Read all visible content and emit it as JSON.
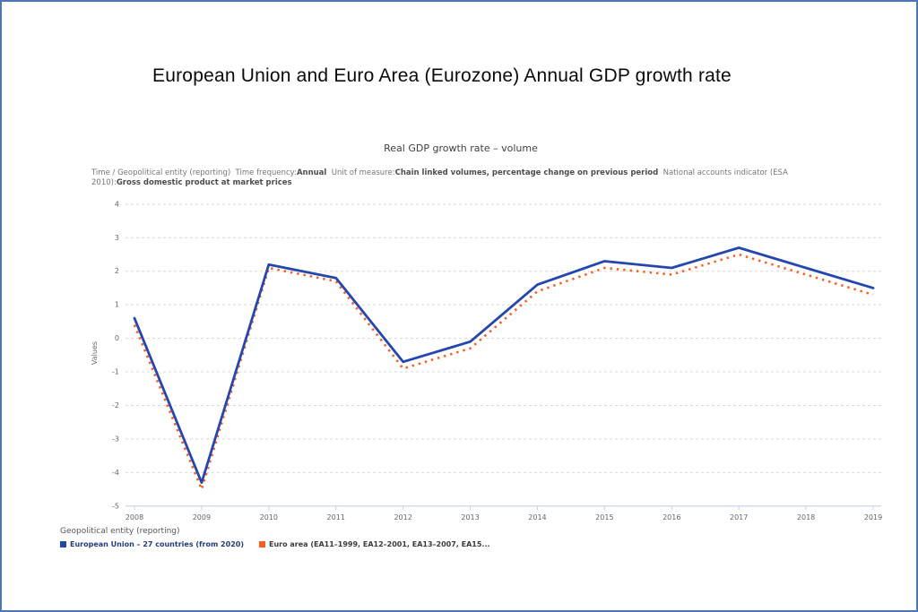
{
  "page": {
    "title": "European Union and Euro Area (Eurozone) Annual GDP growth rate"
  },
  "chart": {
    "subtitle": "Real GDP growth rate – volume",
    "metadata_line1": [
      {
        "t": "Time / Geopolitical entity (reporting)  Time frequency:"
      },
      {
        "t": "Annual"
      },
      {
        "t": "  Unit of measure:"
      },
      {
        "t": "Chain linked volumes, percentage change on previous period"
      },
      {
        "t": "  National accounts indicator (ESA"
      }
    ],
    "metadata_line2": [
      {
        "t": "2010):"
      },
      {
        "t": "Gross domestic product at market prices"
      }
    ]
  },
  "chart_data": {
    "type": "line",
    "title": "Real GDP growth rate – volume",
    "categories": [
      "2008",
      "2009",
      "2010",
      "2011",
      "2012",
      "2013",
      "2014",
      "2015",
      "2016",
      "2017",
      "2018",
      "2019"
    ],
    "series": [
      {
        "name": "European Union – 27 countries (from 2020)",
        "color": "#2546ad",
        "label_color": "#1f3d7a",
        "style": "solid",
        "values": [
          0.6,
          -4.3,
          2.2,
          1.8,
          -0.7,
          -0.1,
          1.6,
          2.3,
          2.1,
          2.7,
          2.1,
          1.5
        ]
      },
      {
        "name": "Euro area (EA11–1999, EA12–2001, EA13–2007, EA15...",
        "color": "#f95d1f",
        "label_color": "#3a3a3a",
        "style": "dotted",
        "values": [
          0.4,
          -4.5,
          2.1,
          1.7,
          -0.9,
          -0.3,
          1.4,
          2.1,
          1.9,
          2.5,
          1.9,
          1.3
        ]
      }
    ],
    "xlabel": "",
    "ylabel": "Values",
    "ylim": [
      -5,
      4
    ],
    "ytick_step": 1,
    "grid": true,
    "grid_style": "dashed",
    "legend_title": "Geopolitical entity (reporting)",
    "legend_position": "bottom-left",
    "axis_color": "#c3d3e8",
    "gridline_color": "#d9d9d9",
    "tick_label_color": "#666666"
  }
}
